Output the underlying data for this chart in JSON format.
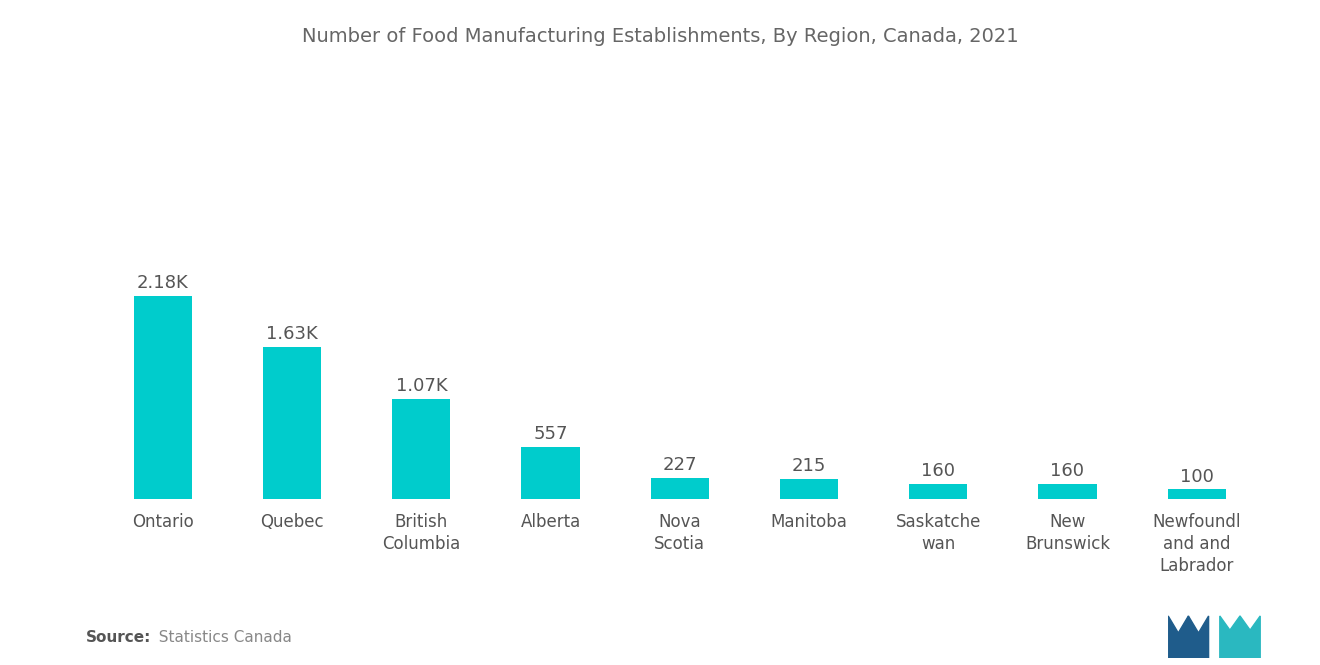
{
  "title": "Number of Food Manufacturing Establishments, By Region, Canada, 2021",
  "categories": [
    "Ontario",
    "Quebec",
    "British\nColumbia",
    "Alberta",
    "Nova\nScotia",
    "Manitoba",
    "Saskatche\nwan",
    "New\nBrunswick",
    "Newfoundl\nand and\nLabrador"
  ],
  "values": [
    2180,
    1630,
    1070,
    557,
    227,
    215,
    160,
    160,
    100
  ],
  "labels": [
    "2.18K",
    "1.63K",
    "1.07K",
    "557",
    "227",
    "215",
    "160",
    "160",
    "100"
  ],
  "bar_color": "#00CCCC",
  "background_color": "#ffffff",
  "source_bold": "Source:",
  "source_normal": "  Statistics Canada",
  "title_fontsize": 14,
  "label_fontsize": 13,
  "tick_fontsize": 12,
  "source_fontsize": 11,
  "ylim": [
    0,
    4500
  ],
  "bar_width": 0.45,
  "logo_m_color": "#1f5c8b",
  "logo_n_color": "#2ab8c0"
}
